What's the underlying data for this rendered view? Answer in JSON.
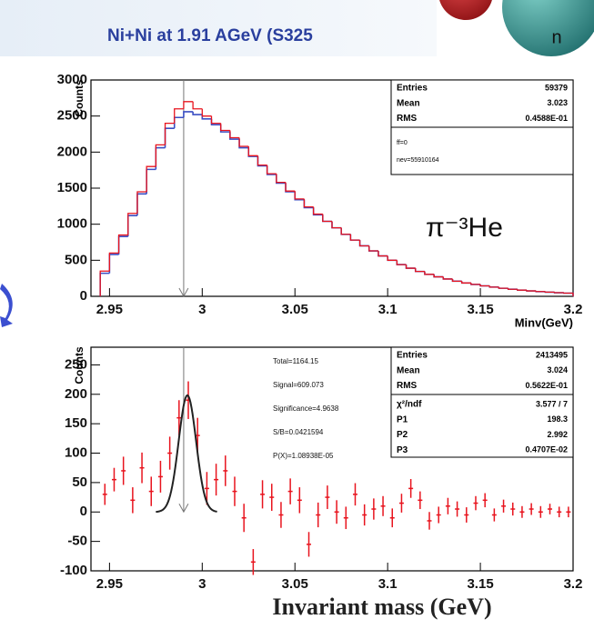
{
  "header": {
    "title": "Ni+Ni at 1.91 AGeV (S325",
    "badge": "n"
  },
  "footer": {
    "xlabel": "Invariant mass (GeV)"
  },
  "chart_data": [
    {
      "type": "histogram",
      "xlabel": "Minv(GeV)",
      "ylabel": "Counts",
      "annotation": "π⁻³He",
      "xlim": [
        2.94,
        3.2
      ],
      "ylim": [
        0,
        3000
      ],
      "xticks": [
        2.95,
        3,
        3.05,
        3.1,
        3.15,
        3.2
      ],
      "yticks": [
        0,
        500,
        1000,
        1500,
        2000,
        2500,
        3000
      ],
      "bins": [
        2.945,
        2.95,
        2.955,
        2.96,
        2.965,
        2.97,
        2.975,
        2.98,
        2.985,
        2.99,
        2.995,
        3,
        3.005,
        3.01,
        3.015,
        3.02,
        3.025,
        3.03,
        3.035,
        3.04,
        3.045,
        3.05,
        3.055,
        3.06,
        3.065,
        3.07,
        3.075,
        3.08,
        3.085,
        3.09,
        3.095,
        3.1,
        3.105,
        3.11,
        3.115,
        3.12,
        3.125,
        3.13,
        3.135,
        3.14,
        3.145,
        3.15,
        3.155,
        3.16,
        3.165,
        3.17,
        3.175,
        3.18,
        3.185,
        3.19,
        3.195,
        3.2
      ],
      "series": [
        {
          "color": "#3a4fc4",
          "values": [
            320,
            580,
            830,
            1120,
            1420,
            1760,
            2060,
            2330,
            2480,
            2560,
            2520,
            2460,
            2380,
            2280,
            2180,
            2060,
            1940,
            1810,
            1690,
            1570,
            1450,
            1340,
            1230,
            1130,
            1040,
            950,
            860,
            780,
            700,
            630,
            560,
            500,
            440,
            390,
            345,
            305,
            270,
            240,
            210,
            185,
            165,
            145,
            128,
            112,
            98,
            86,
            75,
            66,
            58,
            50,
            44
          ]
        },
        {
          "color": "#e8141e",
          "values": [
            350,
            600,
            850,
            1150,
            1450,
            1800,
            2100,
            2400,
            2600,
            2700,
            2600,
            2500,
            2400,
            2300,
            2200,
            2080,
            1950,
            1820,
            1700,
            1580,
            1460,
            1350,
            1240,
            1140,
            1040,
            950,
            860,
            780,
            700,
            630,
            560,
            500,
            440,
            390,
            345,
            305,
            270,
            240,
            210,
            185,
            165,
            145,
            128,
            112,
            98,
            86,
            75,
            66,
            58,
            50,
            44
          ]
        }
      ],
      "marker_x": 2.99,
      "stats": [
        {
          "name": "Entries",
          "value": 59379
        },
        {
          "name": "Mean",
          "value": 3.023
        },
        {
          "name": "RMS",
          "value": {
            "value": 0.04588,
            "label": "0.4588E-01"
          }
        }
      ],
      "notes": [
        "ff=0",
        "nev=55910164"
      ]
    },
    {
      "type": "errorbar",
      "ylabel": "Counts",
      "xlim": [
        2.94,
        3.2
      ],
      "ylim": [
        -100,
        280
      ],
      "xticks": [
        2.95,
        3,
        3.05,
        3.1,
        3.15,
        3.2
      ],
      "yticks": [
        -100,
        -50,
        0,
        50,
        100,
        150,
        200,
        250
      ],
      "x": [
        2.9475,
        2.9525,
        2.9575,
        2.9625,
        2.9675,
        2.9725,
        2.9775,
        2.9825,
        2.9875,
        2.9925,
        2.9975,
        3.0025,
        3.0075,
        3.0125,
        3.0175,
        3.0225,
        3.0275,
        3.0325,
        3.0375,
        3.0425,
        3.0475,
        3.0525,
        3.0575,
        3.0625,
        3.0675,
        3.0725,
        3.0775,
        3.0825,
        3.0875,
        3.0925,
        3.0975,
        3.1025,
        3.1075,
        3.1125,
        3.1175,
        3.1225,
        3.1275,
        3.1325,
        3.1375,
        3.1425,
        3.1475,
        3.1525,
        3.1575,
        3.1625,
        3.1675,
        3.1725,
        3.1775,
        3.1825,
        3.1875,
        3.1925,
        3.1975
      ],
      "values": [
        30,
        55,
        70,
        20,
        75,
        35,
        60,
        100,
        160,
        190,
        130,
        40,
        55,
        70,
        35,
        -10,
        -85,
        30,
        25,
        -5,
        35,
        20,
        -55,
        -5,
        25,
        0,
        -10,
        30,
        -5,
        5,
        10,
        -10,
        15,
        40,
        20,
        -15,
        -5,
        10,
        5,
        -5,
        15,
        20,
        -5,
        10,
        5,
        0,
        5,
        0,
        5,
        0,
        0
      ],
      "yerr": [
        18,
        20,
        24,
        22,
        26,
        25,
        27,
        28,
        30,
        32,
        30,
        28,
        27,
        26,
        25,
        24,
        22,
        24,
        23,
        22,
        22,
        22,
        21,
        21,
        20,
        20,
        19,
        19,
        18,
        18,
        17,
        16,
        16,
        16,
        15,
        15,
        14,
        14,
        13,
        13,
        12,
        12,
        11,
        11,
        11,
        10,
        10,
        10,
        9,
        9,
        9
      ],
      "color": "#e8141e",
      "fit": {
        "color": "#222222",
        "range": [
          2.975,
          3.008
        ]
      },
      "marker_x": 2.99,
      "stats": [
        {
          "name": "Entries",
          "value": 2413495
        },
        {
          "name": "Mean",
          "value": 3.024
        },
        {
          "name": "RMS",
          "value": {
            "value": 0.05622,
            "label": "0.5622E-01"
          }
        },
        {
          "name": "χ²/ndf",
          "value": "3.577   /   7"
        },
        {
          "name": "P1",
          "value": 198.3
        },
        {
          "name": "P2",
          "value": 2.992
        },
        {
          "name": "P3",
          "value": {
            "value": 0.004707,
            "label": "0.4707E-02"
          }
        }
      ],
      "notes": [
        "Total=1164.15",
        "Signal=609.073",
        "Significance=4.9638",
        "S/B=0.0421594",
        "P(X)=1.08938E-05"
      ]
    }
  ]
}
